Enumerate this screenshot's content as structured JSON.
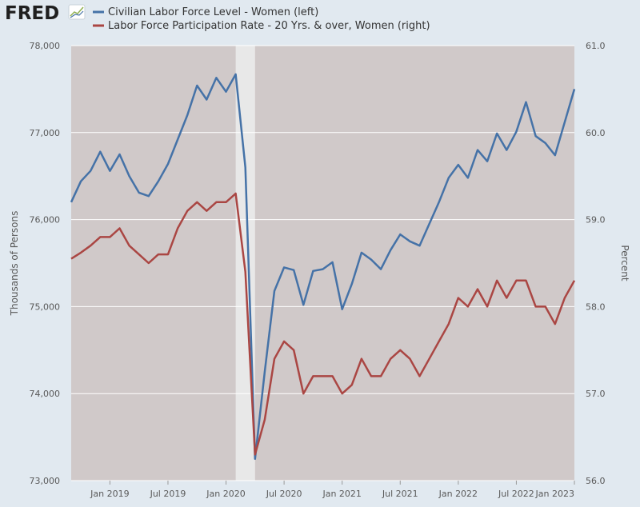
{
  "logo": {
    "text": "FRED"
  },
  "colors": {
    "background": "#e1e9f0",
    "plot_background": "#d0c9c9",
    "recession": "#e8e8e8",
    "grid": "#ffffff",
    "series_women": "#4572a7",
    "series_rate": "#aa4643"
  },
  "chart_data": {
    "type": "line",
    "x": [
      "2018-09",
      "2018-10",
      "2018-11",
      "2018-12",
      "2019-01",
      "2019-02",
      "2019-03",
      "2019-04",
      "2019-05",
      "2019-06",
      "2019-07",
      "2019-08",
      "2019-09",
      "2019-10",
      "2019-11",
      "2019-12",
      "2020-01",
      "2020-02",
      "2020-03",
      "2020-04",
      "2020-05",
      "2020-06",
      "2020-07",
      "2020-08",
      "2020-09",
      "2020-10",
      "2020-11",
      "2020-12",
      "2021-01",
      "2021-02",
      "2021-03",
      "2021-04",
      "2021-05",
      "2021-06",
      "2021-07",
      "2021-08",
      "2021-09",
      "2021-10",
      "2021-11",
      "2021-12",
      "2022-01",
      "2022-02",
      "2022-03",
      "2022-04",
      "2022-05",
      "2022-06",
      "2022-07",
      "2022-08",
      "2022-09",
      "2022-10",
      "2022-11",
      "2022-12",
      "2023-01"
    ],
    "series": [
      {
        "name": "Civilian Labor Force Level - Women (left)",
        "axis": "left",
        "color": "#4572a7",
        "values": [
          76200,
          76440,
          76560,
          76780,
          76560,
          76750,
          76500,
          76310,
          76270,
          76440,
          76640,
          76920,
          77200,
          77540,
          77380,
          77630,
          77470,
          77670,
          76600,
          73250,
          74250,
          75180,
          75450,
          75420,
          75020,
          75410,
          75430,
          75510,
          74970,
          75260,
          75620,
          75540,
          75430,
          75650,
          75830,
          75750,
          75700,
          75950,
          76200,
          76480,
          76630,
          76480,
          76800,
          76670,
          76990,
          76800,
          77010,
          77350,
          76960,
          76880,
          76740,
          77120,
          77500
        ]
      },
      {
        "name": "Labor Force Participation Rate - 20 Yrs. & over, Women (right)",
        "axis": "right",
        "color": "#aa4643",
        "values": [
          58.55,
          58.62,
          58.7,
          58.8,
          58.8,
          58.9,
          58.7,
          58.6,
          58.5,
          58.6,
          58.6,
          58.9,
          59.1,
          59.2,
          59.1,
          59.2,
          59.2,
          59.3,
          58.4,
          56.3,
          56.7,
          57.4,
          57.6,
          57.5,
          57.0,
          57.2,
          57.2,
          57.2,
          57.0,
          57.1,
          57.4,
          57.2,
          57.2,
          57.4,
          57.5,
          57.4,
          57.2,
          57.4,
          57.6,
          57.8,
          58.1,
          58.0,
          58.2,
          58.0,
          58.3,
          58.1,
          58.3,
          58.3,
          58.0,
          58.0,
          57.8,
          58.1,
          58.3
        ]
      }
    ],
    "recession": {
      "start": "2020-02",
      "end": "2020-04"
    },
    "x_tick_labels": [
      "Jan 2019",
      "Jul 2019",
      "Jan 2020",
      "Jul 2020",
      "Jan 2021",
      "Jul 2021",
      "Jan 2022",
      "Jul 2022",
      "Jan 2023"
    ],
    "x_tick_dates": [
      "2019-01",
      "2019-07",
      "2020-01",
      "2020-07",
      "2021-01",
      "2021-07",
      "2022-01",
      "2022-07",
      "2023-01"
    ],
    "y_left": {
      "label": "Thousands of Persons",
      "lim": [
        73000,
        78000
      ],
      "ticks": [
        73000,
        74000,
        75000,
        76000,
        77000,
        78000
      ],
      "tick_labels": [
        "73,000",
        "74,000",
        "75,000",
        "76,000",
        "77,000",
        "78,000"
      ]
    },
    "y_right": {
      "label": "Percent",
      "lim": [
        56.0,
        61.0
      ],
      "ticks": [
        56,
        57,
        58,
        59,
        60,
        61
      ],
      "tick_labels": [
        "56.0",
        "57.0",
        "58.0",
        "59.0",
        "60.0",
        "61.0"
      ]
    },
    "legend_position": "top",
    "grid": true
  }
}
